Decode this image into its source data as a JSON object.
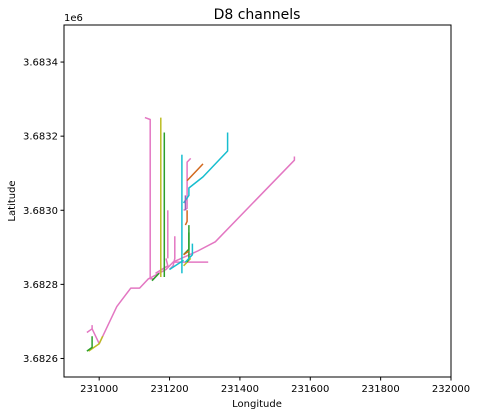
{
  "chart_data": {
    "type": "line",
    "title": "D8 channels",
    "xlabel": "Longitude",
    "ylabel": "Latitude",
    "y_offset_label": "1e6",
    "xlim": [
      230900,
      232000
    ],
    "ylim": [
      3682550,
      3683500
    ],
    "x_ticks": [
      231000,
      231200,
      231400,
      231600,
      231800,
      232000
    ],
    "x_tick_labels": [
      "231000",
      "231200",
      "231400",
      "231600",
      "231800",
      "232000"
    ],
    "y_ticks": [
      3682600,
      3682800,
      3683000,
      3683200,
      3683400
    ],
    "y_tick_labels": [
      "3.6826",
      "3.6828",
      "3.6830",
      "3.6832",
      "3.6834"
    ],
    "grid": false,
    "series": [
      {
        "color": "#e377c2",
        "points": [
          [
            230980,
            3682680
          ],
          [
            231000,
            3682640
          ],
          [
            231050,
            3682740
          ],
          [
            231090,
            3682790
          ],
          [
            231115,
            3682790
          ],
          [
            231140,
            3682815
          ],
          [
            231150,
            3682820
          ],
          [
            231170,
            3682830
          ],
          [
            231190,
            3682840
          ],
          [
            231210,
            3682860
          ],
          [
            231280,
            3682890
          ],
          [
            231330,
            3682915
          ],
          [
            231555,
            3683135
          ],
          [
            231555,
            3683145
          ]
        ]
      },
      {
        "color": "#e377c2",
        "points": [
          [
            231130,
            3683250
          ],
          [
            231145,
            3683245
          ],
          [
            231145,
            3682815
          ],
          [
            231155,
            3682815
          ]
        ]
      },
      {
        "color": "#e377c2",
        "points": [
          [
            231160,
            3682830
          ],
          [
            231195,
            3682850
          ],
          [
            231195,
            3682850
          ],
          [
            231190,
            3682870
          ]
        ]
      },
      {
        "color": "#e377c2",
        "points": [
          [
            231200,
            3682840
          ],
          [
            231210,
            3682850
          ],
          [
            231215,
            3682870
          ],
          [
            231215,
            3682930
          ]
        ]
      },
      {
        "color": "#e377c2",
        "points": [
          [
            231195,
            3682870
          ],
          [
            231195,
            3683000
          ]
        ]
      },
      {
        "color": "#e377c2",
        "points": [
          [
            231210,
            3682860
          ],
          [
            231310,
            3682860
          ]
        ]
      },
      {
        "color": "#e377c2",
        "points": [
          [
            231240,
            3683000
          ],
          [
            231250,
            3683005
          ],
          [
            231250,
            3683130
          ],
          [
            231260,
            3683140
          ]
        ]
      },
      {
        "color": "#e377c2",
        "points": [
          [
            230965,
            3682670
          ],
          [
            230980,
            3682680
          ],
          [
            230980,
            3682690
          ]
        ]
      },
      {
        "color": "#bcbd22",
        "points": [
          [
            231175,
            3682820
          ],
          [
            231175,
            3683250
          ]
        ]
      },
      {
        "color": "#bcbd22",
        "points": [
          [
            230970,
            3682620
          ],
          [
            231000,
            3682640
          ],
          [
            231010,
            3682660
          ]
        ]
      },
      {
        "color": "#bcbd22",
        "points": [
          [
            231240,
            3682850
          ],
          [
            231260,
            3682870
          ]
        ]
      },
      {
        "color": "#2ca02c",
        "points": [
          [
            231185,
            3682820
          ],
          [
            231185,
            3683210
          ]
        ]
      },
      {
        "color": "#2ca02c",
        "points": [
          [
            230965,
            3682620
          ],
          [
            230980,
            3682630
          ],
          [
            230980,
            3682660
          ]
        ]
      },
      {
        "color": "#2ca02c",
        "points": [
          [
            231150,
            3682810
          ],
          [
            231170,
            3682830
          ]
        ]
      },
      {
        "color": "#2ca02c",
        "points": [
          [
            231250,
            3682860
          ],
          [
            231255,
            3682870
          ],
          [
            231255,
            3682940
          ]
        ]
      },
      {
        "color": "#2ca02c",
        "points": [
          [
            231240,
            3682880
          ],
          [
            231255,
            3682895
          ],
          [
            231255,
            3682960
          ]
        ]
      },
      {
        "color": "#17becf",
        "points": [
          [
            231235,
            3682830
          ],
          [
            231235,
            3683150
          ]
        ]
      },
      {
        "color": "#17becf",
        "points": [
          [
            231240,
            3683020
          ],
          [
            231255,
            3683040
          ],
          [
            231255,
            3683060
          ],
          [
            231295,
            3683090
          ],
          [
            231365,
            3683160
          ],
          [
            231365,
            3683210
          ]
        ]
      },
      {
        "color": "#17becf",
        "points": [
          [
            231245,
            3682860
          ],
          [
            231265,
            3682880
          ],
          [
            231265,
            3682910
          ]
        ]
      },
      {
        "color": "#17becf",
        "points": [
          [
            231200,
            3682840
          ],
          [
            231240,
            3682865
          ]
        ]
      },
      {
        "color": "#d2691e",
        "points": [
          [
            231250,
            3683080
          ],
          [
            231280,
            3683110
          ],
          [
            231295,
            3683125
          ]
        ]
      },
      {
        "color": "#d2691e",
        "points": [
          [
            231245,
            3682960
          ],
          [
            231250,
            3682970
          ],
          [
            231250,
            3683000
          ]
        ]
      },
      {
        "color": "#d2691e",
        "points": [
          [
            231240,
            3682880
          ],
          [
            231255,
            3682890
          ]
        ]
      },
      {
        "color": "#9467bd",
        "points": [
          [
            231245,
            3683000
          ],
          [
            231245,
            3683040
          ]
        ]
      }
    ]
  }
}
